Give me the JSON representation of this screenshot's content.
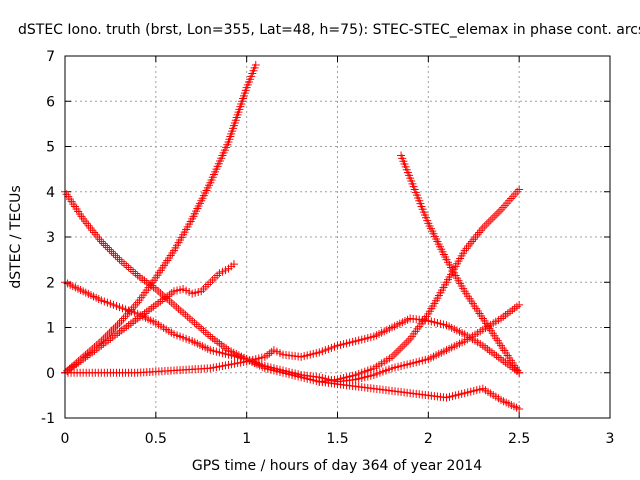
{
  "chart_data": {
    "type": "scatter",
    "title": "dSTEC Iono. truth (brst, Lon=355, Lat=48, h=75): STEC-STEC_elemax in phase cont. arcs",
    "xlabel": "GPS time / hours of day 364 of year 2014",
    "ylabel": "dSTEC  / TECUs",
    "xlim": [
      0,
      3
    ],
    "ylim": [
      -1,
      7
    ],
    "xticks": [
      "0",
      "0.5",
      "1",
      "1.5",
      "2",
      "2.5",
      "3"
    ],
    "yticks": [
      "-1",
      "0",
      "1",
      "2",
      "3",
      "4",
      "5",
      "6",
      "7"
    ],
    "grid": true,
    "marker": "+",
    "marker_color": "#ff0000",
    "series": [
      {
        "x": [
          0.0,
          0.1,
          0.2,
          0.3,
          0.4,
          0.5,
          0.6,
          0.7,
          0.8,
          0.9,
          0.95,
          1.0,
          1.05
        ],
        "y": [
          0.0,
          0.35,
          0.7,
          1.1,
          1.55,
          2.1,
          2.7,
          3.4,
          4.2,
          5.1,
          5.7,
          6.3,
          6.8
        ]
      },
      {
        "x": [
          0.0,
          0.1,
          0.2,
          0.3,
          0.4,
          0.5,
          0.55,
          0.6,
          0.65,
          0.7,
          0.75,
          0.8,
          0.85,
          0.9,
          0.93
        ],
        "y": [
          0.0,
          0.3,
          0.6,
          0.9,
          1.2,
          1.5,
          1.65,
          1.8,
          1.85,
          1.75,
          1.8,
          2.0,
          2.2,
          2.3,
          2.4
        ]
      },
      {
        "x": [
          0.0,
          0.1,
          0.2,
          0.3,
          0.4,
          0.5,
          0.6,
          0.7,
          0.8,
          0.9,
          1.0,
          1.1,
          1.2,
          1.3,
          1.4,
          1.5,
          1.6,
          1.7,
          1.8,
          1.9,
          2.0,
          2.1,
          2.2,
          2.3,
          2.4,
          2.5
        ],
        "y": [
          4.0,
          3.4,
          2.9,
          2.5,
          2.15,
          1.85,
          1.5,
          1.15,
          0.8,
          0.5,
          0.3,
          0.1,
          0.0,
          -0.1,
          -0.2,
          -0.25,
          -0.3,
          -0.35,
          -0.4,
          -0.45,
          -0.5,
          -0.55,
          -0.45,
          -0.35,
          -0.6,
          -0.8
        ]
      },
      {
        "x": [
          0.0,
          0.1,
          0.2,
          0.3,
          0.4,
          0.5,
          0.6,
          0.7,
          0.8,
          0.9,
          1.0,
          1.1,
          1.2,
          1.3,
          1.4,
          1.5,
          1.6,
          1.7,
          1.8,
          1.9,
          2.0,
          2.1,
          2.2,
          2.3,
          2.4,
          2.5
        ],
        "y": [
          2.0,
          1.8,
          1.6,
          1.45,
          1.3,
          1.1,
          0.85,
          0.7,
          0.5,
          0.4,
          0.3,
          0.15,
          0.05,
          -0.05,
          -0.1,
          -0.2,
          -0.15,
          -0.05,
          0.1,
          0.2,
          0.3,
          0.5,
          0.7,
          0.95,
          1.2,
          1.5
        ]
      },
      {
        "x": [
          0.0,
          0.2,
          0.4,
          0.6,
          0.8,
          1.0,
          1.1,
          1.15,
          1.2,
          1.3,
          1.4,
          1.5,
          1.6,
          1.7,
          1.8,
          1.9,
          2.0,
          2.1,
          2.2,
          2.3,
          2.4,
          2.5
        ],
        "y": [
          0.0,
          0.0,
          0.0,
          0.05,
          0.1,
          0.25,
          0.35,
          0.5,
          0.4,
          0.35,
          0.45,
          0.6,
          0.7,
          0.8,
          1.0,
          1.2,
          1.15,
          1.05,
          0.85,
          0.6,
          0.3,
          0.0
        ]
      },
      {
        "x": [
          1.85,
          1.9,
          1.95,
          2.0,
          2.1,
          2.2,
          2.3,
          2.4,
          2.5
        ],
        "y": [
          4.8,
          4.3,
          3.8,
          3.3,
          2.5,
          1.8,
          1.2,
          0.6,
          0.0
        ]
      },
      {
        "x": [
          1.4,
          1.5,
          1.6,
          1.7,
          1.8,
          1.9,
          2.0,
          2.1,
          2.2,
          2.3,
          2.4,
          2.5
        ],
        "y": [
          -0.2,
          -0.15,
          -0.05,
          0.1,
          0.35,
          0.75,
          1.3,
          2.0,
          2.7,
          3.2,
          3.6,
          4.05
        ]
      }
    ]
  }
}
